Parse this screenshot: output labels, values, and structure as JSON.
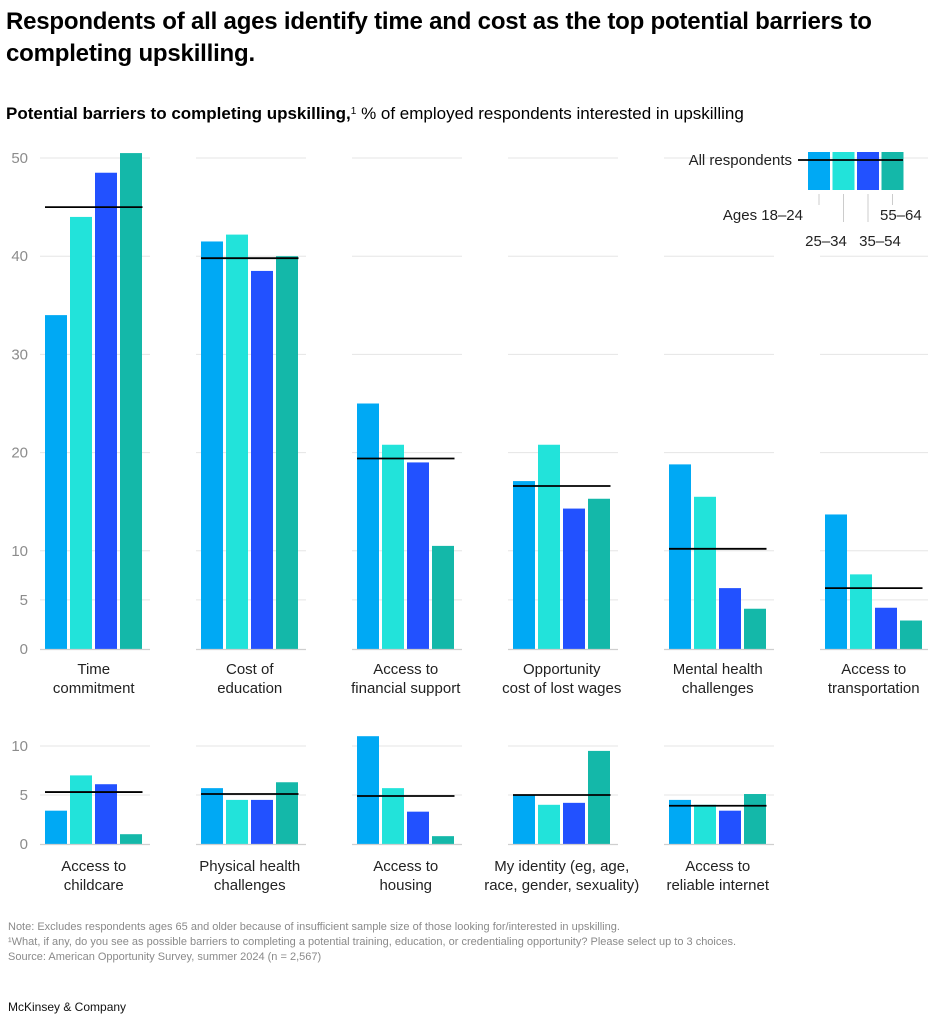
{
  "title": "Respondents of all ages identify time and cost as the top potential barriers to completing upskilling.",
  "subtitle": {
    "bold": "Potential barriers to completing upskilling,",
    "footnote_mark": "1",
    "rest": " % of employed respondents interested in upskilling"
  },
  "legend": {
    "average_label": "All respondents",
    "groups": [
      "Ages 18–24",
      "25–34",
      "35–54",
      "55–64"
    ]
  },
  "colors": {
    "ages_18_24": "#00A9F4",
    "ages_25_34": "#22E3DA",
    "ages_35_54": "#2251FF",
    "ages_55_64": "#14B8A9",
    "average_line": "#000000",
    "grid": "#E5E5E5",
    "axis_text": "#8C8C8C"
  },
  "chart_data": [
    {
      "type": "bar",
      "row": "top",
      "ylim": [
        0,
        50
      ],
      "yticks": [
        0,
        5,
        10,
        20,
        30,
        40,
        50
      ],
      "grid": true,
      "series_names": [
        "Ages 18–24",
        "25–34",
        "35–54",
        "55–64"
      ],
      "panels": [
        {
          "category": [
            "Time",
            "commitment"
          ],
          "values": [
            34,
            44,
            48.5,
            50.5
          ],
          "all_respondents": 45
        },
        {
          "category": [
            "Cost of",
            "education"
          ],
          "values": [
            41.5,
            42.2,
            38.5,
            40
          ],
          "all_respondents": 39.8
        },
        {
          "category": [
            "Access to",
            "financial support"
          ],
          "values": [
            25,
            20.8,
            19,
            10.5
          ],
          "all_respondents": 19.4
        },
        {
          "category": [
            "Opportunity",
            "cost of lost wages"
          ],
          "values": [
            17.1,
            20.8,
            14.3,
            15.3
          ],
          "all_respondents": 16.6
        },
        {
          "category": [
            "Mental health",
            "challenges"
          ],
          "values": [
            18.8,
            15.5,
            6.2,
            4.1
          ],
          "all_respondents": 10.2
        },
        {
          "category": [
            "Access to",
            "transportation"
          ],
          "values": [
            13.7,
            7.6,
            4.2,
            2.9
          ],
          "all_respondents": 6.2
        }
      ]
    },
    {
      "type": "bar",
      "row": "bottom",
      "ylim": [
        0,
        10
      ],
      "yticks": [
        0,
        5,
        10
      ],
      "grid": true,
      "series_names": [
        "Ages 18–24",
        "25–34",
        "35–54",
        "55–64"
      ],
      "panels": [
        {
          "category": [
            "Access to",
            "childcare"
          ],
          "values": [
            3.4,
            7,
            6.1,
            1
          ],
          "all_respondents": 5.3
        },
        {
          "category": [
            "Physical health",
            "challenges"
          ],
          "values": [
            5.7,
            4.5,
            4.5,
            6.3
          ],
          "all_respondents": 5.1
        },
        {
          "category": [
            "Access to",
            "housing"
          ],
          "values": [
            11,
            5.7,
            3.3,
            0.8
          ],
          "all_respondents": 4.9
        },
        {
          "category": [
            "My identity (eg, age,",
            "race, gender, sexuality)"
          ],
          "values": [
            5,
            4,
            4.2,
            9.5
          ],
          "all_respondents": 5
        },
        {
          "category": [
            "Access to",
            "reliable internet"
          ],
          "values": [
            4.5,
            4,
            3.4,
            5.1
          ],
          "all_respondents": 3.9
        }
      ]
    }
  ],
  "notes": [
    "Note: Excludes respondents ages 65 and older because of insufficient sample size of those looking for/interested in upskilling.",
    "¹What, if any, do you see as possible barriers to completing a potential training, education, or credentialing opportunity? Please select up to 3 choices.",
    "Source: American Opportunity Survey, summer 2024 (n = 2,567)"
  ],
  "brand": "McKinsey & Company"
}
